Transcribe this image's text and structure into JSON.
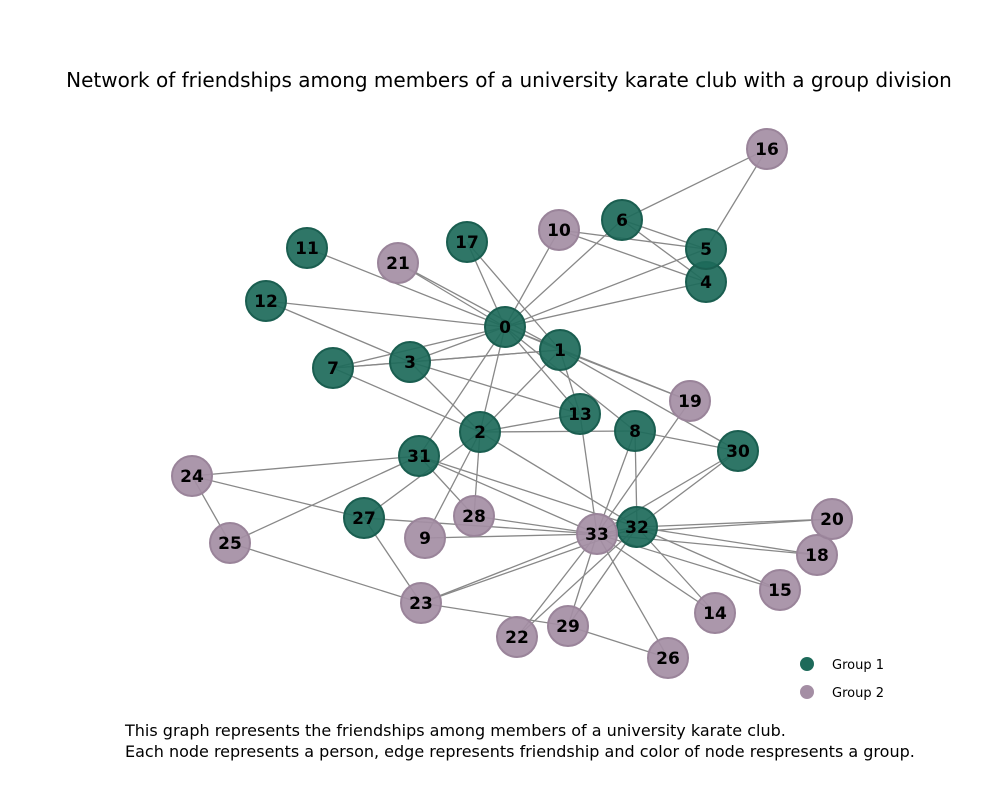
{
  "title": "Network of friendships among members of a university karate club with a group division",
  "caption": {
    "line1": "This graph represents the friendships among members of a university karate club.",
    "line2": "Each node represents a person, edge represents friendship and color of node respresents a group."
  },
  "colors": {
    "group1": "#1d6a5a",
    "group2": "#a48ea4",
    "edge": "#888888"
  },
  "legend": [
    {
      "label": "Group 1",
      "group": 1
    },
    {
      "label": "Group 2",
      "group": 2
    }
  ],
  "nodes": [
    {
      "id": "0",
      "group": 1
    },
    {
      "id": "1",
      "group": 1
    },
    {
      "id": "2",
      "group": 1
    },
    {
      "id": "3",
      "group": 1
    },
    {
      "id": "4",
      "group": 1
    },
    {
      "id": "5",
      "group": 1
    },
    {
      "id": "6",
      "group": 1
    },
    {
      "id": "7",
      "group": 1
    },
    {
      "id": "8",
      "group": 1
    },
    {
      "id": "9",
      "group": 2
    },
    {
      "id": "10",
      "group": 2
    },
    {
      "id": "11",
      "group": 1
    },
    {
      "id": "12",
      "group": 1
    },
    {
      "id": "13",
      "group": 1
    },
    {
      "id": "14",
      "group": 2
    },
    {
      "id": "15",
      "group": 2
    },
    {
      "id": "16",
      "group": 2
    },
    {
      "id": "17",
      "group": 1
    },
    {
      "id": "18",
      "group": 2
    },
    {
      "id": "19",
      "group": 2
    },
    {
      "id": "20",
      "group": 2
    },
    {
      "id": "21",
      "group": 2
    },
    {
      "id": "22",
      "group": 2
    },
    {
      "id": "23",
      "group": 2
    },
    {
      "id": "24",
      "group": 2
    },
    {
      "id": "25",
      "group": 2
    },
    {
      "id": "26",
      "group": 2
    },
    {
      "id": "27",
      "group": 1
    },
    {
      "id": "28",
      "group": 2
    },
    {
      "id": "29",
      "group": 2
    },
    {
      "id": "30",
      "group": 1
    },
    {
      "id": "31",
      "group": 1
    },
    {
      "id": "32",
      "group": 1
    },
    {
      "id": "33",
      "group": 2
    }
  ],
  "edges": [
    [
      "0",
      "1"
    ],
    [
      "0",
      "2"
    ],
    [
      "0",
      "3"
    ],
    [
      "0",
      "4"
    ],
    [
      "0",
      "5"
    ],
    [
      "0",
      "6"
    ],
    [
      "0",
      "7"
    ],
    [
      "0",
      "8"
    ],
    [
      "0",
      "10"
    ],
    [
      "0",
      "11"
    ],
    [
      "0",
      "12"
    ],
    [
      "0",
      "13"
    ],
    [
      "0",
      "17"
    ],
    [
      "0",
      "19"
    ],
    [
      "0",
      "21"
    ],
    [
      "0",
      "31"
    ],
    [
      "1",
      "2"
    ],
    [
      "1",
      "3"
    ],
    [
      "1",
      "7"
    ],
    [
      "1",
      "13"
    ],
    [
      "1",
      "17"
    ],
    [
      "1",
      "19"
    ],
    [
      "1",
      "21"
    ],
    [
      "1",
      "30"
    ],
    [
      "2",
      "3"
    ],
    [
      "2",
      "7"
    ],
    [
      "2",
      "8"
    ],
    [
      "2",
      "9"
    ],
    [
      "2",
      "13"
    ],
    [
      "2",
      "27"
    ],
    [
      "2",
      "28"
    ],
    [
      "2",
      "32"
    ],
    [
      "3",
      "7"
    ],
    [
      "3",
      "12"
    ],
    [
      "3",
      "13"
    ],
    [
      "4",
      "6"
    ],
    [
      "4",
      "10"
    ],
    [
      "5",
      "6"
    ],
    [
      "5",
      "10"
    ],
    [
      "5",
      "16"
    ],
    [
      "6",
      "16"
    ],
    [
      "8",
      "30"
    ],
    [
      "8",
      "32"
    ],
    [
      "8",
      "33"
    ],
    [
      "9",
      "33"
    ],
    [
      "13",
      "33"
    ],
    [
      "14",
      "32"
    ],
    [
      "14",
      "33"
    ],
    [
      "15",
      "32"
    ],
    [
      "15",
      "33"
    ],
    [
      "18",
      "32"
    ],
    [
      "18",
      "33"
    ],
    [
      "19",
      "33"
    ],
    [
      "20",
      "32"
    ],
    [
      "20",
      "33"
    ],
    [
      "22",
      "32"
    ],
    [
      "22",
      "33"
    ],
    [
      "23",
      "25"
    ],
    [
      "23",
      "27"
    ],
    [
      "23",
      "29"
    ],
    [
      "23",
      "32"
    ],
    [
      "23",
      "33"
    ],
    [
      "24",
      "25"
    ],
    [
      "24",
      "27"
    ],
    [
      "24",
      "31"
    ],
    [
      "25",
      "31"
    ],
    [
      "26",
      "29"
    ],
    [
      "26",
      "33"
    ],
    [
      "27",
      "33"
    ],
    [
      "28",
      "31"
    ],
    [
      "28",
      "33"
    ],
    [
      "29",
      "32"
    ],
    [
      "29",
      "33"
    ],
    [
      "30",
      "32"
    ],
    [
      "30",
      "33"
    ],
    [
      "31",
      "32"
    ],
    [
      "31",
      "33"
    ],
    [
      "32",
      "33"
    ]
  ]
}
